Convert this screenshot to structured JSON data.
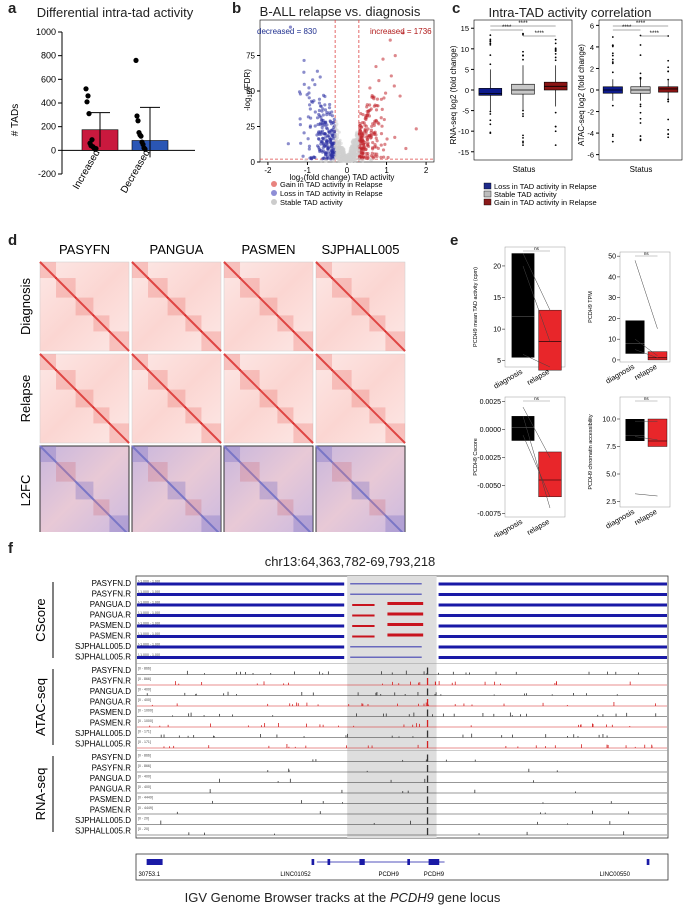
{
  "panel_a": {
    "letter": "a",
    "title": "Differential intra-tad activity",
    "chart_data": {
      "type": "bar",
      "title": "Differential intra-tad activity",
      "ylabel": "# TADs",
      "categories": [
        "Increased",
        "Decreased"
      ],
      "values": [
        174,
        83
      ],
      "errors": [
        145,
        280
      ],
      "points": [
        [
          520,
          410,
          460,
          310,
          60,
          40,
          90,
          30,
          20,
          10,
          15
        ],
        [
          760,
          290,
          250,
          150,
          130,
          120,
          70,
          50,
          20,
          10
        ]
      ],
      "ylim": [
        -200,
        1000
      ],
      "yticks": [
        "-200",
        "0",
        "200",
        "400",
        "600",
        "800",
        "1000"
      ],
      "colors": [
        "#c9193e",
        "#2a56b5"
      ]
    }
  },
  "panel_b": {
    "letter": "b",
    "title": "B-ALL relapse vs. diagnosis",
    "chart_data": {
      "type": "scatter",
      "title": "B-ALL relapse vs. diagnosis",
      "xlabel_main": "log",
      "xlabel_sub": "2",
      "xlabel_rest": "(fold change) TAD activity",
      "ylabel_main": "-log",
      "ylabel_sub": "10",
      "ylabel_rest": "(FDR)",
      "xlim": [
        -2.2,
        2.2
      ],
      "ylim": [
        0,
        100
      ],
      "xticks": [
        "-2",
        "-1",
        "0",
        "1",
        "2"
      ],
      "yticks": [
        "0",
        "25",
        "50",
        "75"
      ],
      "decreased_label": "decreased = 830",
      "increased_label": "increased = 1736",
      "legend": [
        {
          "label": "Gain in TAD activity in Relapse",
          "color": "#e8837f"
        },
        {
          "label": "Loss in TAD activity in Relapse",
          "color": "#8e8ed6"
        },
        {
          "label": "Stable TAD activity",
          "color": "#cccccc"
        }
      ]
    }
  },
  "panel_c": {
    "letter": "c",
    "title": "Intra-TAD activity correlation",
    "chart_data": [
      {
        "type": "box",
        "ylabel": "RNA-seq log2 (fold change)",
        "xlabel": "Status",
        "ylim": [
          -17,
          17
        ],
        "yticks": [
          "15",
          "10",
          "5",
          "0",
          "-5",
          "-10",
          "-15"
        ],
        "boxes": [
          {
            "group": "Loss",
            "q1": -1.3,
            "median": -0.9,
            "q3": 0.4,
            "low": -5,
            "high": 5
          },
          {
            "group": "Stable",
            "q1": -1.0,
            "median": 0.0,
            "q3": 1.4,
            "low": -5,
            "high": 6
          },
          {
            "group": "Gain",
            "q1": 0.0,
            "median": 0.9,
            "q3": 1.9,
            "low": -4,
            "high": 6
          }
        ],
        "signif": [
          "****",
          "****",
          "****"
        ]
      },
      {
        "type": "box",
        "ylabel": "ATAC-seq log2 (fold change)",
        "xlabel": "Status",
        "ylim": [
          -6.5,
          6.5
        ],
        "yticks": [
          "6",
          "4",
          "2",
          "0",
          "-2",
          "-4",
          "-6"
        ],
        "boxes": [
          {
            "group": "Loss",
            "q1": -0.3,
            "median": 0.0,
            "q3": 0.3,
            "low": -1.0,
            "high": 1.0
          },
          {
            "group": "Stable",
            "q1": -0.3,
            "median": 0.0,
            "q3": 0.3,
            "low": -1.0,
            "high": 1.0
          },
          {
            "group": "Gain",
            "q1": -0.2,
            "median": 0.1,
            "q3": 0.3,
            "low": -0.8,
            "high": 0.9
          }
        ],
        "signif": [
          "****",
          "****",
          "****"
        ]
      }
    ],
    "legend": [
      {
        "label": "Loss in TAD activity in Relapse",
        "color": "#1e2a8a"
      },
      {
        "label": "Stable TAD activity",
        "color": "#bdbdbd"
      },
      {
        "label": "Gain in TAD activity in Relapse",
        "color": "#8a1a1a"
      }
    ]
  },
  "panel_d": {
    "letter": "d",
    "samples": [
      "PASYFN",
      "PANGUA",
      "PASMEN",
      "SJPHALL005"
    ],
    "rows": [
      "Diagnosis",
      "Relapse",
      "L2FC"
    ]
  },
  "panel_e": {
    "letter": "e",
    "chart_data": [
      {
        "type": "box",
        "ylabel": "PCDH9 mean TAD activity (cpm)",
        "ylim": [
          4,
          23
        ],
        "yticks": [
          "20",
          "15",
          "10",
          "5"
        ],
        "categories": [
          "diagnosis",
          "relapse"
        ],
        "ns": "ns"
      },
      {
        "type": "box",
        "ylabel": "PCDH9 TPM",
        "ylim": [
          -1,
          52
        ],
        "yticks": [
          "50",
          "40",
          "30",
          "20",
          "10",
          "0"
        ],
        "categories": [
          "diagnosis",
          "relapse"
        ],
        "ns": "ns"
      },
      {
        "type": "box",
        "ylabel": "PCDH9 Cscore",
        "ylim": [
          -0.0078,
          0.0029
        ],
        "yticks": [
          "0.0025",
          "0.0000",
          "-0.0025",
          "-0.0050",
          "-0.0075"
        ],
        "categories": [
          "diagnosis",
          "relapse"
        ],
        "ns": "ns"
      },
      {
        "type": "box",
        "ylabel": "PCDH9 chromatin accessibility",
        "ylim": [
          2,
          12
        ],
        "yticks": [
          "10.0",
          "7.5",
          "5.0",
          "2.5"
        ],
        "categories": [
          "diagnosis",
          "relapse"
        ],
        "ns": "ns"
      }
    ]
  },
  "panel_f": {
    "letter": "f",
    "locus": "chr13:64,363,782-69,793,218",
    "caption_prefix": "IGV Genome Browser tracks at the ",
    "caption_gene": "PCDH9",
    "caption_suffix": " gene locus",
    "groups": [
      {
        "name": "CScore",
        "tracks": [
          {
            "label": "PASYFN.D",
            "range": "[-1.000 - 1.00]"
          },
          {
            "label": "PASYFN.R",
            "range": "[-1.000 - 1.00]"
          },
          {
            "label": "PANGUA.D",
            "range": "[-1.000 - 1.00]"
          },
          {
            "label": "PANGUA.R",
            "range": "[-1.000 - 1.00]"
          },
          {
            "label": "PASMEN.D",
            "range": "[-1.000 - 1.00]"
          },
          {
            "label": "PASMEN.R",
            "range": "[-1.000 - 1.00]"
          },
          {
            "label": "SJPHALL005.D",
            "range": "[-1.000 - 1.00]"
          },
          {
            "label": "SJPHALL005.R",
            "range": "[-1.000 - 1.00]"
          }
        ]
      },
      {
        "name": "ATAC-seq",
        "tracks": [
          {
            "label": "PASYFN.D",
            "range": "[0 - 866]"
          },
          {
            "label": "PASYFN.R",
            "range": "[0 - 866]"
          },
          {
            "label": "PANGUA.D",
            "range": "[0 - 400]"
          },
          {
            "label": "PANGUA.R",
            "range": "[0 - 400]"
          },
          {
            "label": "PASMEN.D",
            "range": "[0 - 1000]"
          },
          {
            "label": "PASMEN.R",
            "range": "[0 - 1000]"
          },
          {
            "label": "SJPHALL005.D",
            "range": "[0 - 171]"
          },
          {
            "label": "SJPHALL005.R",
            "range": "[0 - 171]"
          }
        ]
      },
      {
        "name": "RNA-seq",
        "tracks": [
          {
            "label": "PASYFN.D",
            "range": "[0 - 866]"
          },
          {
            "label": "PASYFN.R",
            "range": "[0 - 866]"
          },
          {
            "label": "PANGUA.D",
            "range": "[0 - 400]"
          },
          {
            "label": "PANGUA.R",
            "range": "[0 - 400]"
          },
          {
            "label": "PASMEN.D",
            "range": "[0 - 4449]"
          },
          {
            "label": "PASMEN.R",
            "range": "[0 - 4449]"
          },
          {
            "label": "SJPHALL005.D",
            "range": "[0 - 20]"
          },
          {
            "label": "SJPHALL005.R",
            "range": "[0 - 20]"
          }
        ]
      }
    ],
    "genes": [
      "30753.1",
      "LINC01052",
      "PCDH9",
      "PCDH9",
      "LINC00550"
    ]
  }
}
